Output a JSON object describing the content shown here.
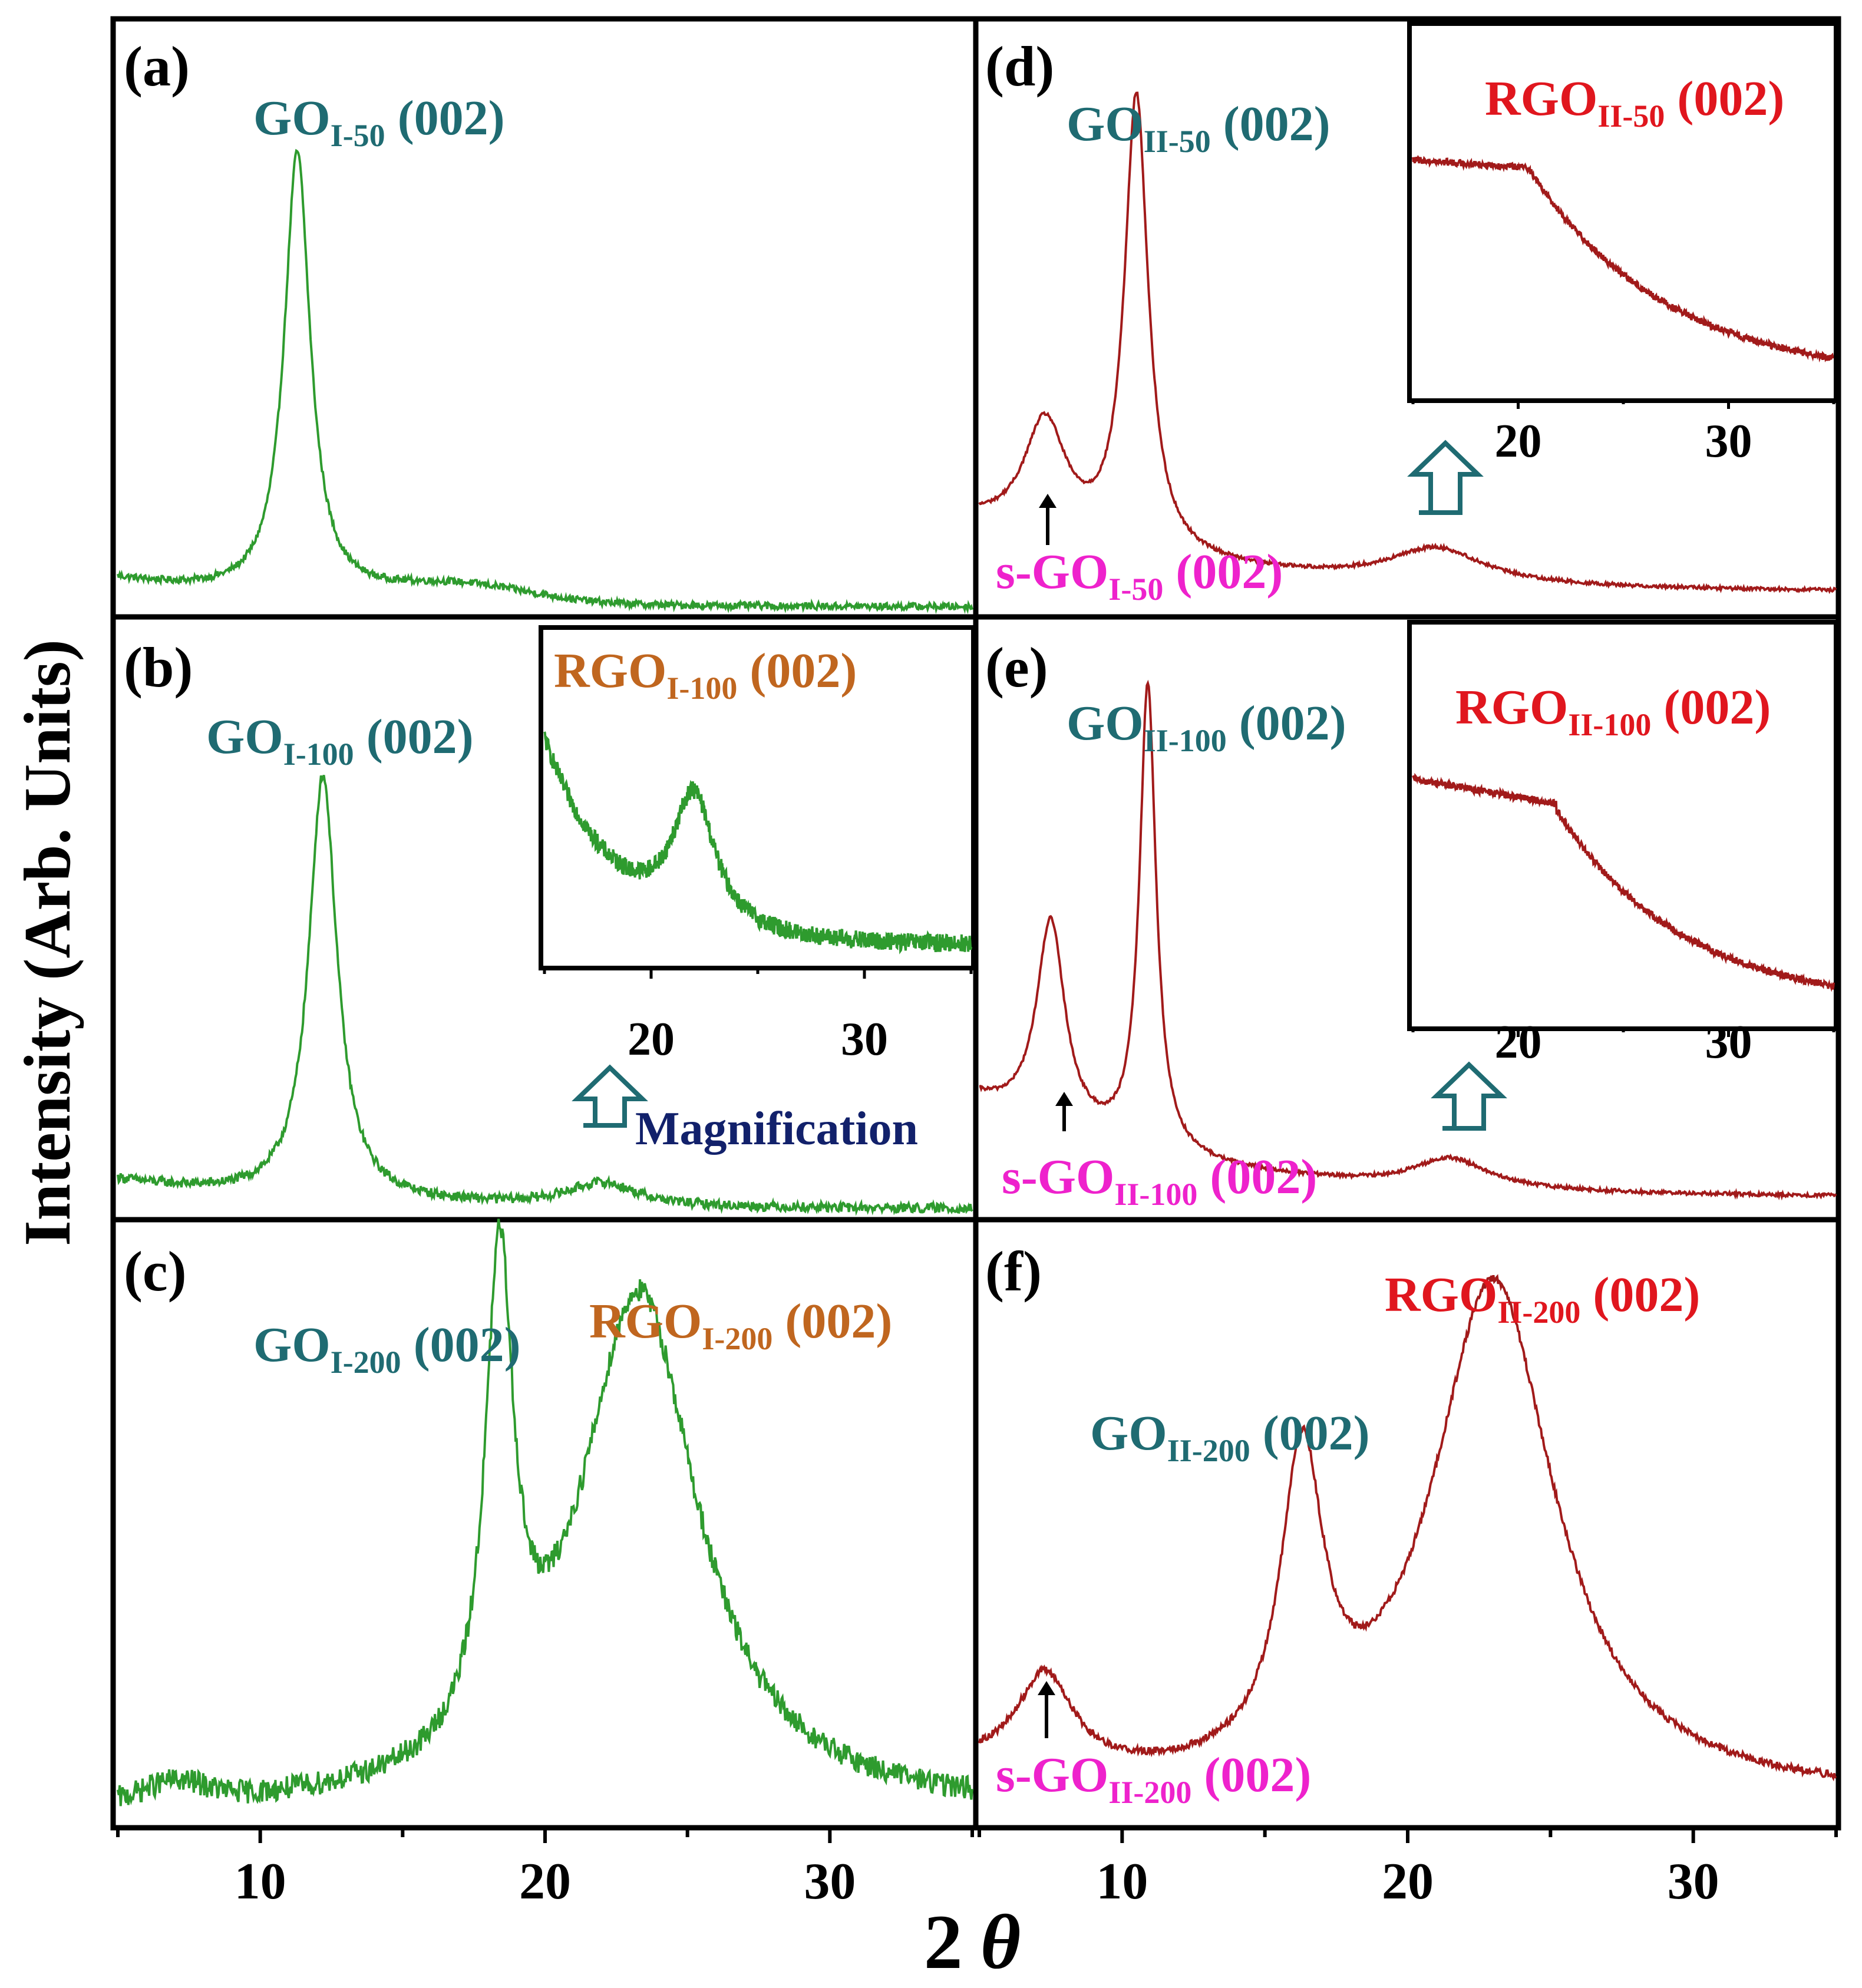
{
  "figure": {
    "ylabel": "Intensity (Arb. Units)",
    "xlabel_num": "2",
    "xlabel_sym": "θ",
    "colors": {
      "green": "#2e9b2e",
      "red": "#a11a1a",
      "teal": "#1f6b72",
      "magenta": "#ee22cc",
      "orange": "#c0661f",
      "brightred": "#e0161e",
      "navy": "#12216b"
    }
  },
  "x_ticks": [
    "10",
    "20",
    "30"
  ],
  "inset_ticks": [
    "20",
    "30"
  ],
  "magnification": "Magnification",
  "panels": {
    "a": {
      "label": "(a)",
      "go_main": "GO",
      "go_sub": "I-50",
      "go_tail": " (002)"
    },
    "b": {
      "label": "(b)",
      "go_main": "GO",
      "go_sub": "I-100",
      "go_tail": " (002)",
      "rgo_main": "RGO",
      "rgo_sub": "I-100",
      "rgo_tail": " (002)"
    },
    "c": {
      "label": "(c)",
      "go_main": "GO",
      "go_sub": "I-200",
      "go_tail": " (002)",
      "rgo_main": "RGO",
      "rgo_sub": "I-200",
      "rgo_tail": " (002)"
    },
    "d": {
      "label": "(d)",
      "go_main": "GO",
      "go_sub": "II-50",
      "go_tail": " (002)",
      "rgo_main": "RGO",
      "rgo_sub": "II-50",
      "rgo_tail": " (002)",
      "sgo_main": "s-GO",
      "sgo_sub": "I-50",
      "sgo_tail": " (002)"
    },
    "e": {
      "label": "(e)",
      "go_main": "GO",
      "go_sub": "II-100",
      "go_tail": " (002)",
      "rgo_main": "RGO",
      "rgo_sub": "II-100",
      "rgo_tail": " (002)",
      "sgo_main": "s-GO",
      "sgo_sub": "II-100",
      "sgo_tail": " (002)"
    },
    "f": {
      "label": "(f)",
      "go_main": "GO",
      "go_sub": "II-200",
      "go_tail": " (002)",
      "rgo_main": "RGO",
      "rgo_sub": "II-200",
      "rgo_tail": " (002)",
      "sgo_main": "s-GO",
      "sgo_sub": "II-200",
      "sgo_tail": " (002)"
    }
  },
  "chart_data": [
    {
      "type": "line",
      "panel": "a",
      "title": "(a)",
      "xlabel": "2 θ",
      "ylabel": "Intensity (Arb. Units)",
      "xlim": [
        5,
        35
      ],
      "ylim": [
        0,
        1
      ],
      "color": "#2e9b2e",
      "noise": 0.006,
      "peaks": [
        {
          "label": "GO I-50 (002)",
          "x": 11.3,
          "height": 0.77,
          "width": 0.55
        }
      ],
      "background": "low decaying baseline with weak hump near 2θ ≈ 17"
    },
    {
      "type": "line",
      "panel": "b",
      "title": "(b)",
      "xlim": [
        5,
        35
      ],
      "ylim": [
        0,
        1
      ],
      "color": "#2e9b2e",
      "noise": 0.008,
      "peaks": [
        {
          "label": "GO I-100 (002)",
          "x": 12.2,
          "height": 0.72,
          "width": 0.6
        },
        {
          "label": "RGO I-100 (002)",
          "x": 22.0,
          "height": 0.04,
          "width": 1.5
        }
      ]
    },
    {
      "type": "line",
      "panel": "b-inset",
      "title": "RGO I-100 (002)",
      "xlim": [
        15,
        35
      ],
      "ylim": [
        0,
        1
      ],
      "color": "#2e9b2e",
      "noise": 0.035,
      "peaks": [
        {
          "label": "RGO I-100 (002)",
          "x": 22.0,
          "height": 0.5,
          "width": 1.2
        }
      ],
      "start_value": 0.85,
      "end_value": 0.08
    },
    {
      "type": "line",
      "panel": "c",
      "title": "(c)",
      "xlim": [
        5,
        35
      ],
      "ylim": [
        0,
        1
      ],
      "color": "#2e9b2e",
      "noise": 0.02,
      "peaks": [
        {
          "label": "GO I-200 (002)",
          "x": 18.4,
          "height": 0.8,
          "width": 0.6
        },
        {
          "label": "RGO I-200 (002)",
          "x": 23.3,
          "height": 0.86,
          "width": 2.5
        }
      ]
    },
    {
      "type": "line",
      "panel": "d",
      "title": "(d)",
      "xlim": [
        5,
        35
      ],
      "ylim": [
        0,
        1
      ],
      "color": "#a11a1a",
      "noise": 0.003,
      "peaks": [
        {
          "label": "s-GO I-50 (002)",
          "x": 7.3,
          "height": 0.2,
          "width": 0.9
        },
        {
          "label": "GO II-50 (002)",
          "x": 10.5,
          "height": 0.79,
          "width": 0.5
        },
        {
          "label": "RGO II-50 (002)",
          "x": 21.0,
          "height": 0.06,
          "width": 2.0
        }
      ]
    },
    {
      "type": "line",
      "panel": "d-inset",
      "title": "RGO II-50 (002)",
      "xlim": [
        15,
        35
      ],
      "ylim": [
        0,
        1
      ],
      "color": "#a11a1a",
      "noise": 0.012,
      "start_value": 0.85,
      "shoulder_x": 20.5,
      "end_value": 0.06
    },
    {
      "type": "line",
      "panel": "e",
      "title": "(e)",
      "xlim": [
        5,
        35
      ],
      "ylim": [
        0,
        1
      ],
      "color": "#a11a1a",
      "noise": 0.003,
      "peaks": [
        {
          "label": "s-GO II-100 (002)",
          "x": 7.5,
          "height": 0.35,
          "width": 0.6
        },
        {
          "label": "GO II-100 (002)",
          "x": 10.9,
          "height": 0.79,
          "width": 0.35
        },
        {
          "label": "RGO II-100 (002)",
          "x": 21.5,
          "height": 0.05,
          "width": 1.6
        }
      ]
    },
    {
      "type": "line",
      "panel": "e-inset",
      "title": "RGO II-100 (002)",
      "xlim": [
        15,
        35
      ],
      "ylim": [
        0,
        1
      ],
      "color": "#a11a1a",
      "noise": 0.012,
      "start_value": 0.82,
      "shoulder_x": 21.8,
      "end_value": 0.06
    },
    {
      "type": "line",
      "panel": "f",
      "title": "(f)",
      "xlim": [
        5,
        35
      ],
      "ylim": [
        0,
        1
      ],
      "color": "#a11a1a",
      "noise": 0.006,
      "peaks": [
        {
          "label": "s-GO II-200 (002)",
          "x": 7.3,
          "height": 0.16,
          "width": 1.2
        },
        {
          "label": "GO II-200 (002)",
          "x": 16.3,
          "height": 0.5,
          "width": 0.9
        },
        {
          "label": "RGO II-200 (002)",
          "x": 23.0,
          "height": 0.86,
          "width": 2.6
        }
      ]
    }
  ]
}
